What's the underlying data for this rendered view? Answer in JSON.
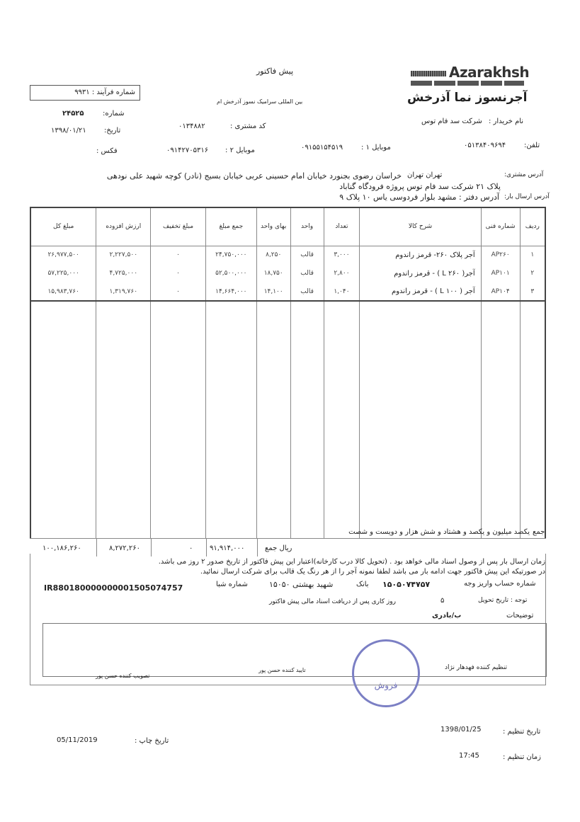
{
  "header": {
    "brand_en": "Azarakhsh",
    "brand_fa": "آجرنسوز نما آذرخش",
    "title": "پیش فاکتور",
    "subtitle": "بین المللی سرامیک نسوز آذرخش ام",
    "process_no_label": "شماره فرآیند :",
    "process_no": "۹۹۳۱",
    "number_label": "شماره:",
    "number": "۲۴۵۲۵",
    "date_label": "تاریخ:",
    "date": "۱۳۹۸/۰۱/۲۱",
    "fax_label": "فکس :"
  },
  "customer": {
    "buyer_label": "نام خریدار :",
    "buyer": "شرکت سد فام توس",
    "code_label": "کد مشتری :",
    "code": "۰۱۳۴۸۸۲",
    "phone_label": "تلفن:",
    "phone": "۰۵۱۳۸۴۰۹۶۹۴",
    "mobile1_label": "موبایل ۱ :",
    "mobile1": "۰۹۱۵۵۱۵۴۵۱۹",
    "mobile2_label": "موبایل ۲ :",
    "mobile2": "۰۹۱۴۲۷۰۵۳۱۶",
    "address_label": "آدرس مشتری:",
    "address_city": "تهران    تهران",
    "address": "خراسان رضوی بجنورد خیابان امام حسینی عربی خیابان بسیج (نادر) کوچه شهید علی نودهی",
    "address2": "پلاک ۲۱ شرکت سد فام توس پروژه فرودگاه گناباد",
    "ship_label": "آدرس ارسال بار:",
    "ship": "آدرس دفتر : مشهد بلوار فردوسی یاس ۱۰ پلاک ۹"
  },
  "table": {
    "headers": [
      "ردیف",
      "شماره فنی",
      "شرح کالا",
      "تعداد",
      "واحد",
      "بهای واحد",
      "جمع مبلغ",
      "مبلغ تخفیف",
      "ارزش افزوده",
      "مبلغ کل"
    ],
    "rows": [
      [
        "۱",
        "AP۲۶۰",
        "آجر پلاک ۲۶۰- قرمز راندوم",
        "۳,۰۰۰",
        "قالب",
        "۸,۲۵۰",
        "۲۴,۷۵۰,۰۰۰",
        "۰",
        "۲,۲۲۷,۵۰۰",
        "۲۶,۹۷۷,۵۰۰"
      ],
      [
        "۲",
        "AP۱۰۱",
        "آجر( L ۲۶۰ ) - قرمز راندوم",
        "۲,۸۰۰",
        "قالب",
        "۱۸,۷۵۰",
        "۵۲,۵۰۰,۰۰۰",
        "۰",
        "۴,۷۲۵,۰۰۰",
        "۵۷,۲۲۵,۰۰۰"
      ],
      [
        "۳",
        "AP۱۰۴",
        "آجر ( L ۱۰۰ ) - قرمز راندوم",
        "۱,۰۴۰",
        "قالب",
        "۱۴,۱۰۰",
        "۱۴,۶۶۴,۰۰۰",
        "۰",
        "۱,۳۱۹,۷۶۰",
        "۱۵,۹۸۳,۷۶۰"
      ]
    ],
    "words_label": "جمع",
    "words": "یکصد میلیون و یکصد و هشتاد و شش هزار و دویست و شصت",
    "sum_label": "ریال  جمع",
    "sum": "۹۱,۹۱۴,۰۰۰",
    "discount": "۰",
    "vat": "۸,۲۷۲,۲۶۰",
    "total": "۱۰۰,۱۸۶,۲۶۰"
  },
  "terms": {
    "line1": "زمان ارسال بار پس از وصول اسناد مالی خواهد بود . (تحویل کالا درب کارخانه)اعتبار این پیش فاکتور از تاریخ صدور ۲ روز می باشد.",
    "line2": "در صورتیکه این پیش فاکتور جهت ادامه بار می باشد لطفا نمونه آجر را از هر رنگ یک قالب برای شرکت ارسال نمائید.",
    "account_label": "شماره حساب واریز وجه",
    "account": "۱۵۰۵۰۷۴۷۵۷",
    "bank_label": "بانک",
    "bank": "شهید بهشتی ۱۵۰۵۰",
    "sheba_label": "شماره شبا",
    "sheba": "IR880180000000001505074757",
    "delivery_label": "توجه : تاریخ تحویل",
    "delivery_days": "۵",
    "delivery_text": "روز کاری پس از دریافت اسناد مالی پیش فاکتور",
    "notes_label": "توضیحات",
    "notes": "ب/بادری"
  },
  "signatures": {
    "prepared": "تنظیم کننده فهدهار نژاد",
    "confirmed": "تایید کننده حسن پور",
    "approved": "تصویب کننده حسن پور",
    "stamp": "فروش"
  },
  "footer": {
    "issue_date_label": "تاریخ تنظیم :",
    "issue_date": "1398/01/25",
    "issue_time_label": "زمان تنظیم :",
    "issue_time": "17:45",
    "print_date_label": "تاریخ چاپ :",
    "print_date": "05/11/2019"
  }
}
